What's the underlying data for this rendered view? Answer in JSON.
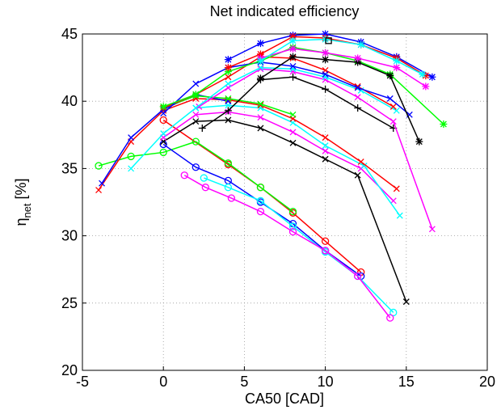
{
  "chart_data": {
    "type": "line",
    "title": "Net indicated efficiency",
    "xlabel": "CA50 [CAD]",
    "ylabel": [
      "η",
      "net",
      "[%]"
    ],
    "xlim": [
      -5,
      20
    ],
    "ylim": [
      20,
      45
    ],
    "xticks": [
      -5,
      0,
      5,
      10,
      15,
      20
    ],
    "yticks": [
      20,
      25,
      30,
      35,
      40,
      45
    ],
    "grid": true,
    "series": [
      {
        "color": "#ff0000",
        "marker": "o",
        "x": [
          0,
          4,
          6,
          8,
          10,
          12.2
        ],
        "values": [
          38.6,
          35.3,
          33.6,
          31.7,
          29.6,
          27.3
        ]
      },
      {
        "color": "#00ff00",
        "marker": "o",
        "x": [
          -4,
          -2,
          0,
          2,
          4,
          6,
          8
        ],
        "values": [
          35.2,
          35.9,
          36.2,
          37.0,
          35.4,
          33.6,
          31.8
        ]
      },
      {
        "color": "#0000ff",
        "marker": "o",
        "x": [
          0,
          2,
          4,
          6,
          8,
          10,
          12.2
        ],
        "values": [
          36.8,
          35.1,
          34.1,
          32.5,
          30.9,
          28.9,
          27.0
        ]
      },
      {
        "color": "#00ffff",
        "marker": "o",
        "x": [
          2.5,
          4,
          6,
          8,
          10,
          12,
          14.2
        ],
        "values": [
          34.3,
          33.6,
          32.6,
          30.7,
          28.8,
          27.0,
          24.3
        ]
      },
      {
        "color": "#ff00ff",
        "marker": "o",
        "x": [
          1.3,
          2.6,
          4.2,
          6,
          8,
          10,
          12,
          14
        ],
        "values": [
          34.5,
          33.6,
          32.8,
          31.8,
          30.3,
          28.9,
          27.0,
          23.9
        ]
      },
      {
        "color": "#000000",
        "marker": "x",
        "x": [
          0,
          2,
          4,
          6,
          8,
          10,
          12,
          15
        ],
        "values": [
          37.0,
          38.5,
          38.6,
          38.0,
          36.9,
          35.7,
          34.5,
          25.1
        ]
      },
      {
        "color": "#ff00ff",
        "marker": "x",
        "x": [
          0,
          2,
          4,
          6,
          8,
          10,
          12.2,
          14.2
        ],
        "values": [
          37.3,
          39.0,
          39.2,
          38.8,
          37.7,
          36.3,
          35.0,
          32.6
        ]
      },
      {
        "color": "#00ffff",
        "marker": "x",
        "x": [
          -2,
          0,
          2,
          4,
          6,
          8,
          10,
          12.4,
          14.6
        ],
        "values": [
          35.0,
          37.6,
          39.5,
          39.7,
          39.5,
          38.4,
          36.7,
          35.2,
          31.5
        ]
      },
      {
        "color": "#ff0000",
        "marker": "x",
        "x": [
          -4,
          -2,
          0,
          2,
          4,
          6,
          8,
          10,
          12.2,
          14.4
        ],
        "values": [
          33.4,
          37.0,
          39.3,
          40.2,
          40.1,
          39.7,
          38.7,
          37.3,
          35.5,
          33.5
        ]
      },
      {
        "color": "#0000ff",
        "marker": "x",
        "x": [
          -3.8,
          -2,
          0,
          2,
          4
        ],
        "values": [
          33.9,
          37.3,
          39.4,
          40.5,
          40.0
        ]
      },
      {
        "color": "#00ff00",
        "marker": "x",
        "x": [
          0,
          2,
          4,
          6,
          8
        ],
        "values": [
          39.5,
          40.4,
          40.2,
          39.8,
          39.0
        ]
      },
      {
        "color": "#000000",
        "marker": "+",
        "x": [
          2.4,
          4,
          6,
          8,
          10,
          12,
          14.2
        ],
        "values": [
          38.0,
          39.3,
          41.6,
          41.8,
          40.9,
          39.5,
          38.0
        ]
      },
      {
        "color": "#ff00ff",
        "marker": "x",
        "x": [
          2.2,
          4,
          6,
          8,
          10,
          12,
          14.2,
          16.6
        ],
        "values": [
          39.6,
          41.0,
          42.4,
          42.2,
          41.6,
          40.3,
          38.5,
          30.5
        ]
      },
      {
        "color": "#00ffff",
        "marker": "x",
        "x": [
          2,
          4,
          6,
          8,
          10,
          12.2,
          14.4
        ],
        "values": [
          39.5,
          41.3,
          42.5,
          42.4,
          41.8,
          40.8,
          39.3
        ]
      },
      {
        "color": "#ff0000",
        "marker": "x",
        "x": [
          0,
          2,
          4,
          6,
          8,
          10,
          12,
          14.2
        ],
        "values": [
          39.5,
          40.5,
          41.8,
          43.3,
          43.2,
          42.3,
          41.1,
          39.6
        ]
      },
      {
        "color": "#0000ff",
        "marker": "x",
        "x": [
          0,
          2,
          4,
          6,
          8,
          10,
          12,
          14,
          15.2
        ],
        "values": [
          39.1,
          41.3,
          42.5,
          42.9,
          42.6,
          42.0,
          41.0,
          40.2,
          39.0
        ]
      },
      {
        "color": "#00ff00",
        "marker": "*",
        "x": [
          0,
          2,
          4,
          6,
          8,
          10,
          12,
          14,
          17.3
        ],
        "values": [
          39.6,
          40.5,
          42.2,
          43.0,
          44.0,
          43.6,
          43.0,
          42.0,
          38.3
        ]
      },
      {
        "color": "#000000",
        "marker": "*",
        "x": [
          6,
          8,
          10,
          12,
          14,
          15.8
        ],
        "values": [
          41.7,
          43.3,
          43.1,
          42.9,
          41.9,
          37.0
        ]
      },
      {
        "color": "#0000ff",
        "marker": "*",
        "x": [
          4,
          6,
          8,
          10,
          12.2,
          14.4,
          16.6
        ],
        "values": [
          43.1,
          44.3,
          44.9,
          45.0,
          44.4,
          43.3,
          41.8
        ]
      },
      {
        "color": "#ff0000",
        "marker": "*",
        "x": [
          4,
          6,
          8,
          10,
          12.2,
          14.4,
          16.2
        ],
        "values": [
          42.5,
          43.5,
          44.8,
          44.7,
          44.2,
          43.2,
          41.9
        ]
      },
      {
        "color": "#ff00ff",
        "marker": "*",
        "x": [
          6,
          8,
          10,
          12,
          14.4,
          16.2
        ],
        "values": [
          43.2,
          43.9,
          43.6,
          43.2,
          42.5,
          41.1
        ]
      },
      {
        "color": "#00ffff",
        "marker": "*",
        "x": [
          6,
          8,
          10,
          12.2,
          14.4,
          16
        ],
        "values": [
          43.0,
          44.5,
          44.6,
          44.2,
          43.0,
          42.0
        ]
      },
      {
        "color": "#000000",
        "marker": "s",
        "x": [
          10.2
        ],
        "values": [
          44.5
        ]
      }
    ]
  }
}
